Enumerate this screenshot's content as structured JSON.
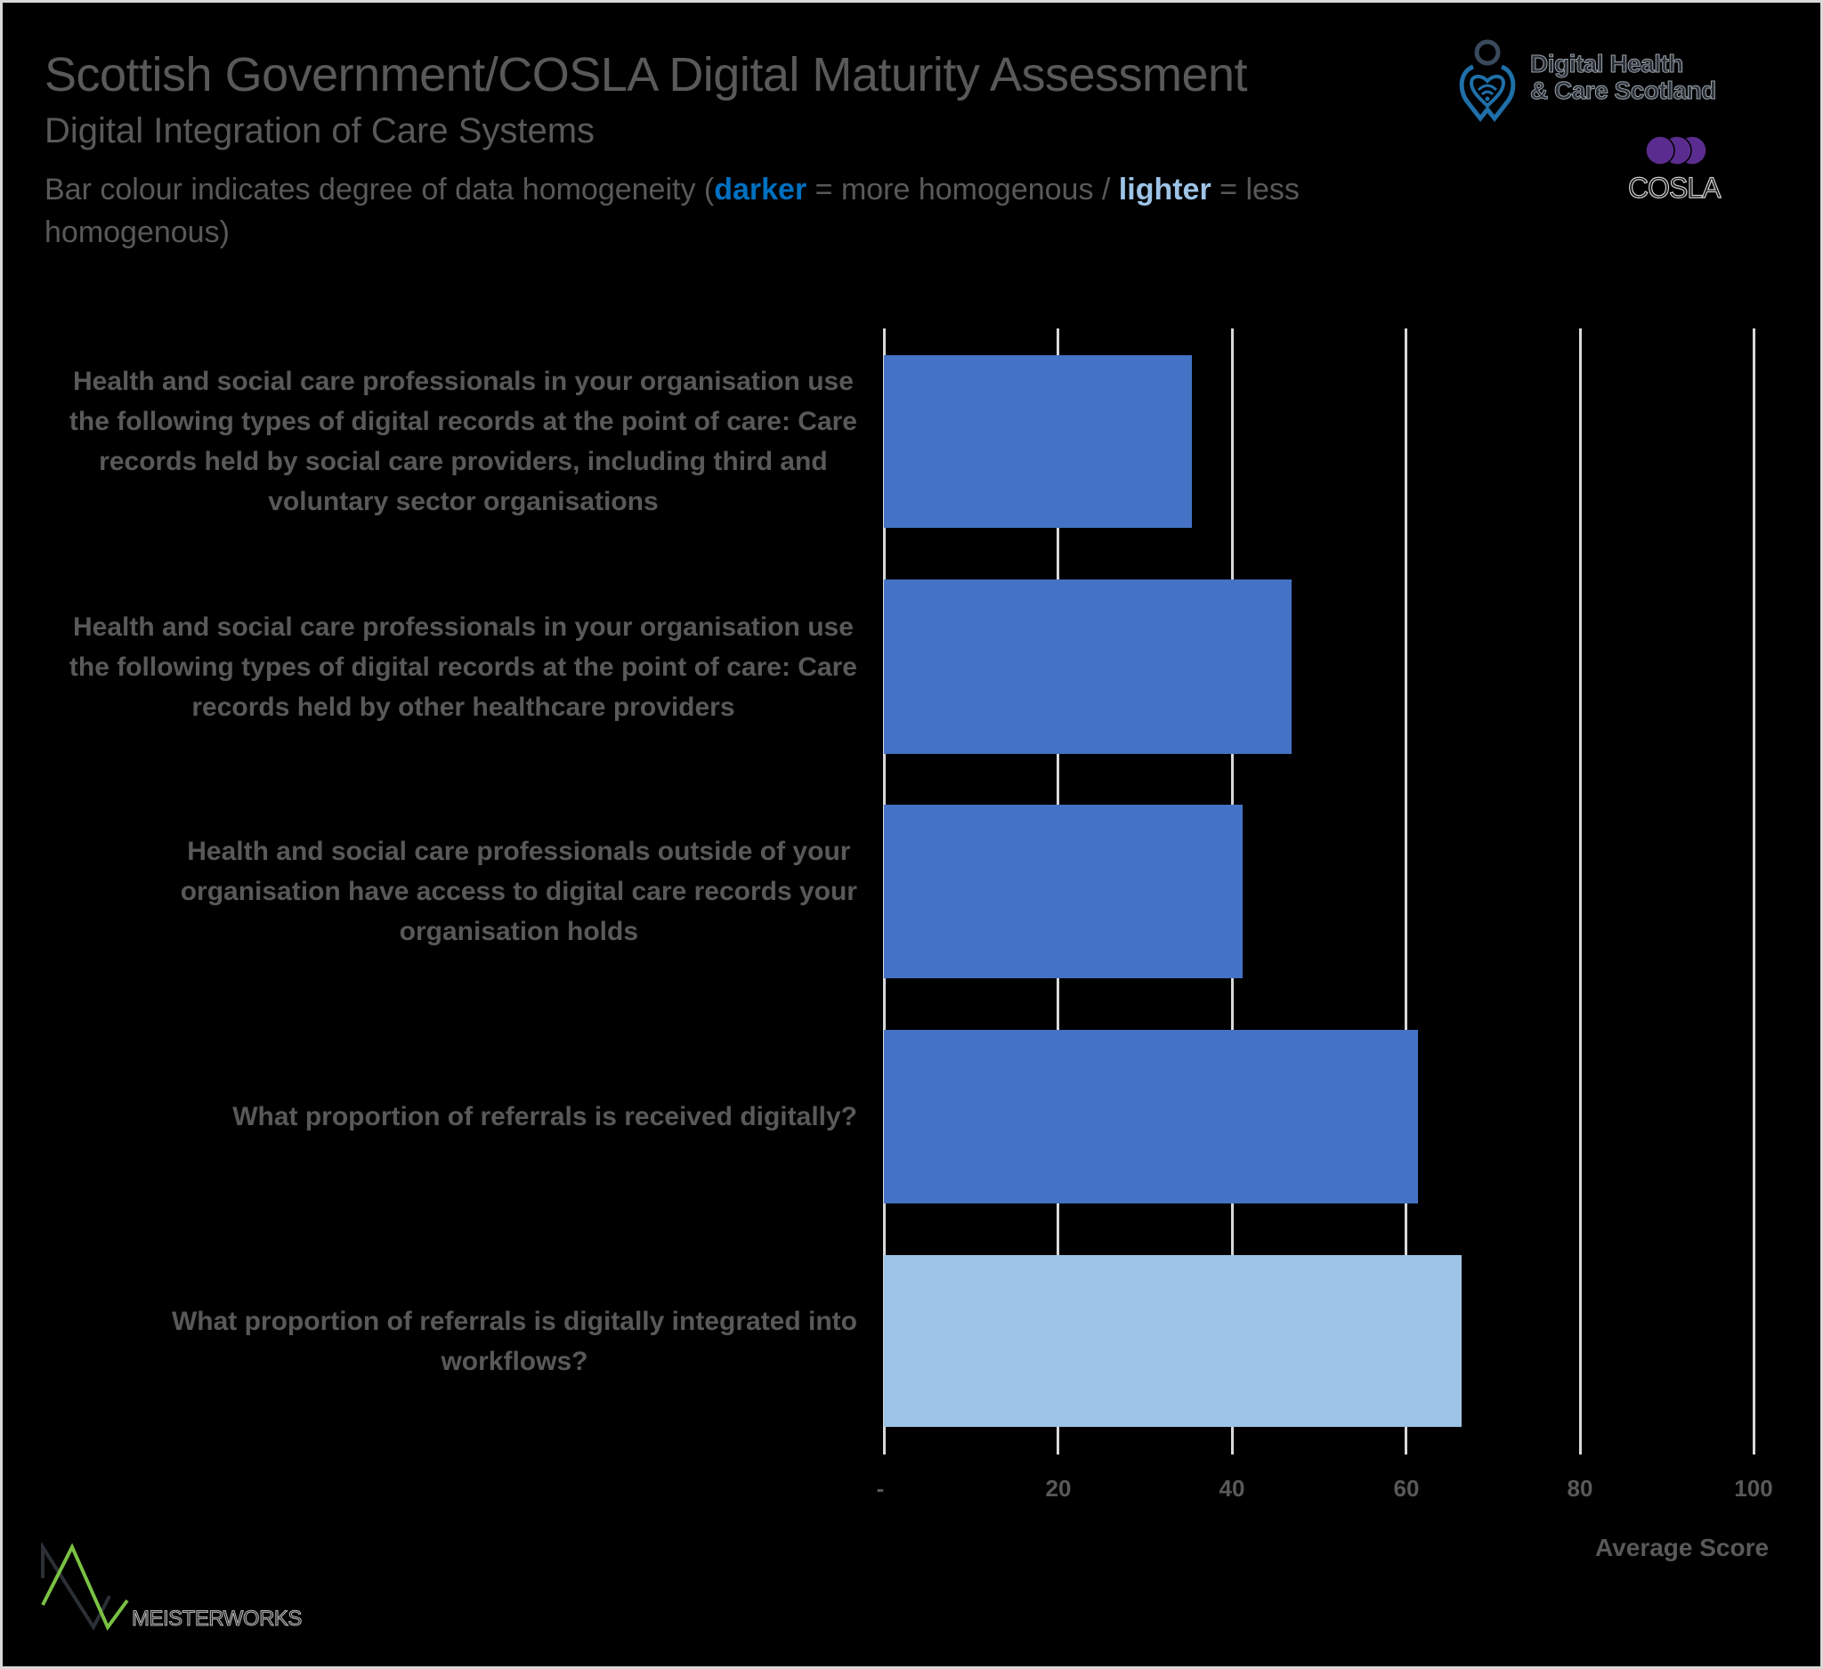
{
  "header": {
    "title": "Scottish Government/COSLA Digital Maturity Assessment",
    "subtitle": "Digital Integration of Care Systems",
    "description": {
      "prefix": "Bar colour indicates degree of data homogeneity (",
      "dark_word": "darker",
      "middle": " = more homogenous / ",
      "light_word": "lighter",
      "suffix": " = less homogenous)"
    }
  },
  "logos": {
    "dhcs": {
      "line1": "Digital Health",
      "line2": "& Care Scotland"
    },
    "cosla": {
      "text": "COSLA"
    },
    "meisterworks": {
      "text": "MEISTERWORKS"
    }
  },
  "colors": {
    "text": "#595959",
    "bar_dark": "#4472C4",
    "bar_light": "#9DC3E6",
    "legend_dark": "#0070C0",
    "legend_light": "#9DC3E6",
    "gridline": "#D9D9D9",
    "background": "#000000"
  },
  "chart_data": {
    "type": "bar",
    "orientation": "horizontal",
    "title": "Scottish Government/COSLA Digital Maturity Assessment",
    "subtitle": "Digital Integration of Care Systems",
    "xlabel": "Average Score",
    "ylabel": "",
    "xlim": [
      0,
      100
    ],
    "x_ticks": [
      "-",
      "20",
      "40",
      "60",
      "80",
      "100"
    ],
    "x_tick_values": [
      0,
      20,
      40,
      60,
      80,
      100
    ],
    "grid": true,
    "legend": "Bar colour indicates degree of data homogeneity (darker = more homogenous / lighter = less homogenous)",
    "categories": [
      "Health and social care professionals in your organisation use the following types of digital records at the point of care: Care records held by social care providers, including third and voluntary sector organisations",
      "Health and social care professionals in your organisation use the following types of digital records at the point of care: Care records held by other healthcare providers",
      "Health and social care professionals outside of your organisation have access to digital care records your organisation holds",
      "What proportion of referrals is received digitally?",
      "What proportion of referrals is digitally integrated into workflows?"
    ],
    "values": [
      35.4,
      46.9,
      41.2,
      61.4,
      66.4
    ],
    "homogeneity": [
      "darker",
      "darker",
      "darker",
      "darker",
      "lighter"
    ],
    "bar_colors": [
      "#4472C4",
      "#4472C4",
      "#4472C4",
      "#4472C4",
      "#9DC3E6"
    ]
  },
  "category_lines": [
    [
      "Health and social care professionals in your organisation use",
      "the following types of digital records at the point of care: Care",
      "records held by social care providers, including third and",
      "voluntary sector organisations"
    ],
    [
      "Health and social care professionals in your organisation use",
      "the following types of digital records at the point of care: Care",
      "records held by other healthcare providers"
    ],
    [
      "Health and social care professionals outside of your",
      "organisation have access to digital care records your",
      "organisation holds"
    ],
    [
      "What proportion of referrals is received digitally?"
    ],
    [
      "What proportion of referrals is digitally integrated into",
      "workflows?"
    ]
  ]
}
